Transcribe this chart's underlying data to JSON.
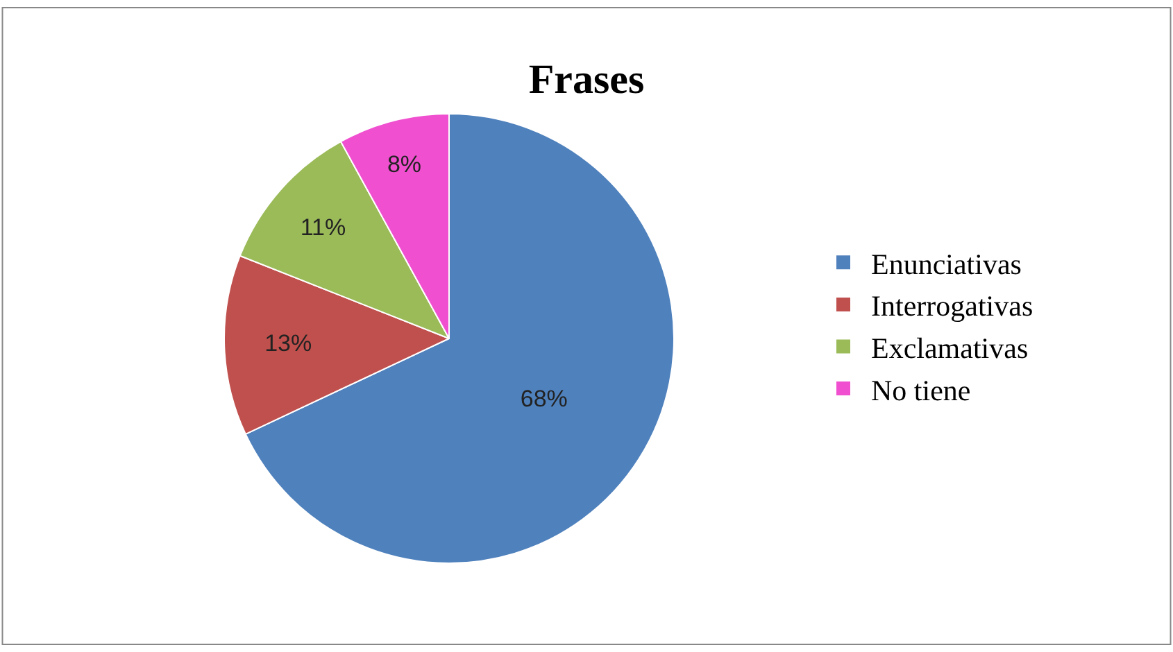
{
  "chart_data": {
    "type": "pie",
    "title": "Frases",
    "categories": [
      "Enunciativas",
      "Interrogativas",
      "Exclamativas",
      "No tiene"
    ],
    "values": [
      68,
      13,
      11,
      8
    ],
    "value_labels": [
      "68%",
      "13%",
      "11%",
      "8%"
    ],
    "colors": [
      "#4f81bd",
      "#c0504d",
      "#9bbb59",
      "#f050d0"
    ],
    "legend": "right"
  }
}
